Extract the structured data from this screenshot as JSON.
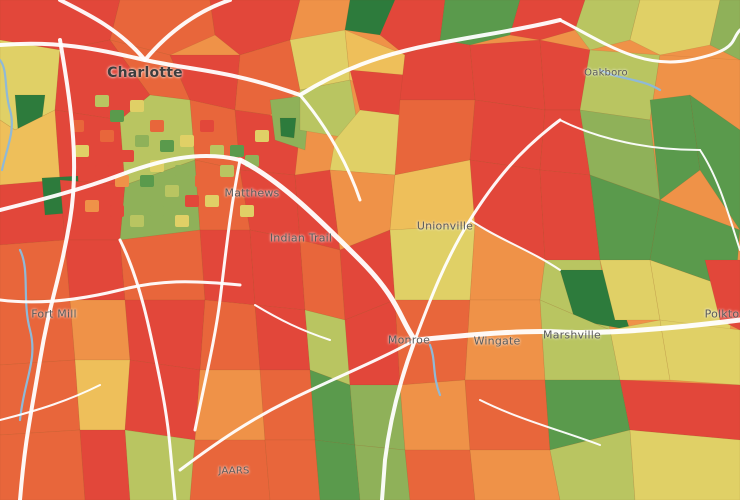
{
  "map": {
    "places": {
      "charlotte": "Charlotte",
      "matthews": "Matthews",
      "indian_trail": "Indian Trail",
      "unionville": "Unionville",
      "oakboro": "Oakboro",
      "fort_mill": "Fort Mill",
      "monroe": "Monroe",
      "wingate": "Wingate",
      "marshville": "Marshville",
      "polkton": "Polkto",
      "jaars": "JAARS"
    },
    "colors": {
      "red": "#e2473a",
      "red_orange": "#e8663b",
      "orange": "#ef9248",
      "yellow_orange": "#eebf5a",
      "yellow": "#e0d066",
      "yellow_green": "#b9c561",
      "light_green": "#8fb159",
      "green": "#5a9a4c",
      "dark_green": "#2d7b3c",
      "road": "#ffffff",
      "water": "#8fb9d7"
    }
  }
}
